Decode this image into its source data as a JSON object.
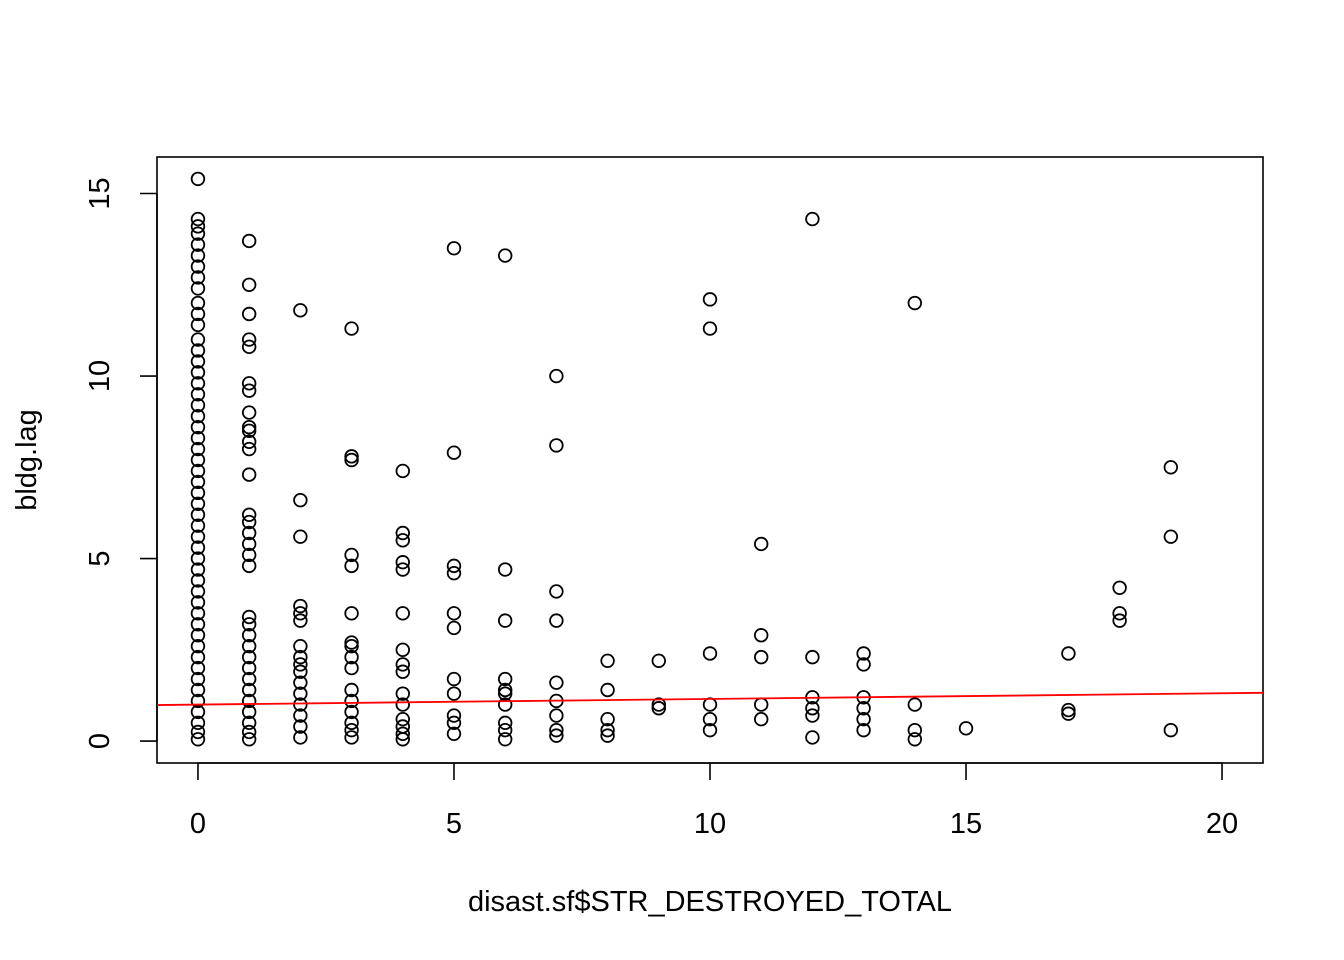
{
  "chart_data": {
    "type": "scatter",
    "title": "",
    "xlabel": "disast.sf$STR_DESTROYED_TOTAL",
    "ylabel": "bldg.lag",
    "xlim": [
      -0.8,
      20.8
    ],
    "ylim": [
      -0.6,
      16.0
    ],
    "xticks": [
      0,
      5,
      10,
      15,
      20
    ],
    "yticks": [
      0,
      5,
      10,
      15
    ],
    "grid": false,
    "legend": "none",
    "colors": {
      "points": "#000000",
      "fit_line": "#ff0000",
      "axes": "#000000"
    },
    "fit_line": {
      "intercept": 1.0,
      "slope": 0.0155,
      "color": "#ff0000"
    },
    "points": [
      {
        "x": 0,
        "y": 15.4
      },
      {
        "x": 0,
        "y": 14.3
      },
      {
        "x": 0,
        "y": 14.1
      },
      {
        "x": 0,
        "y": 13.9
      },
      {
        "x": 0,
        "y": 13.6
      },
      {
        "x": 0,
        "y": 13.3
      },
      {
        "x": 0,
        "y": 13.0
      },
      {
        "x": 0,
        "y": 12.7
      },
      {
        "x": 0,
        "y": 12.4
      },
      {
        "x": 0,
        "y": 12.0
      },
      {
        "x": 0,
        "y": 11.7
      },
      {
        "x": 0,
        "y": 11.4
      },
      {
        "x": 0,
        "y": 11.0
      },
      {
        "x": 0,
        "y": 10.7
      },
      {
        "x": 0,
        "y": 10.4
      },
      {
        "x": 0,
        "y": 10.1
      },
      {
        "x": 0,
        "y": 9.8
      },
      {
        "x": 0,
        "y": 9.5
      },
      {
        "x": 0,
        "y": 9.2
      },
      {
        "x": 0,
        "y": 8.9
      },
      {
        "x": 0,
        "y": 8.6
      },
      {
        "x": 0,
        "y": 8.3
      },
      {
        "x": 0,
        "y": 8.0
      },
      {
        "x": 0,
        "y": 7.7
      },
      {
        "x": 0,
        "y": 7.4
      },
      {
        "x": 0,
        "y": 7.1
      },
      {
        "x": 0,
        "y": 6.8
      },
      {
        "x": 0,
        "y": 6.5
      },
      {
        "x": 0,
        "y": 6.2
      },
      {
        "x": 0,
        "y": 5.9
      },
      {
        "x": 0,
        "y": 5.6
      },
      {
        "x": 0,
        "y": 5.3
      },
      {
        "x": 0,
        "y": 5.0
      },
      {
        "x": 0,
        "y": 4.7
      },
      {
        "x": 0,
        "y": 4.4
      },
      {
        "x": 0,
        "y": 4.1
      },
      {
        "x": 0,
        "y": 3.8
      },
      {
        "x": 0,
        "y": 3.5
      },
      {
        "x": 0,
        "y": 3.2
      },
      {
        "x": 0,
        "y": 2.9
      },
      {
        "x": 0,
        "y": 2.6
      },
      {
        "x": 0,
        "y": 2.3
      },
      {
        "x": 0,
        "y": 2.0
      },
      {
        "x": 0,
        "y": 1.7
      },
      {
        "x": 0,
        "y": 1.4
      },
      {
        "x": 0,
        "y": 1.1
      },
      {
        "x": 0,
        "y": 0.8
      },
      {
        "x": 0,
        "y": 0.5
      },
      {
        "x": 0,
        "y": 0.25
      },
      {
        "x": 0,
        "y": 0.05
      },
      {
        "x": 1,
        "y": 13.7
      },
      {
        "x": 1,
        "y": 12.5
      },
      {
        "x": 1,
        "y": 11.7
      },
      {
        "x": 1,
        "y": 11.0
      },
      {
        "x": 1,
        "y": 10.8
      },
      {
        "x": 1,
        "y": 9.8
      },
      {
        "x": 1,
        "y": 9.6
      },
      {
        "x": 1,
        "y": 9.0
      },
      {
        "x": 1,
        "y": 8.6
      },
      {
        "x": 1,
        "y": 8.5
      },
      {
        "x": 1,
        "y": 8.2
      },
      {
        "x": 1,
        "y": 8.0
      },
      {
        "x": 1,
        "y": 7.3
      },
      {
        "x": 1,
        "y": 6.2
      },
      {
        "x": 1,
        "y": 6.0
      },
      {
        "x": 1,
        "y": 5.7
      },
      {
        "x": 1,
        "y": 5.4
      },
      {
        "x": 1,
        "y": 5.1
      },
      {
        "x": 1,
        "y": 4.8
      },
      {
        "x": 1,
        "y": 3.4
      },
      {
        "x": 1,
        "y": 3.2
      },
      {
        "x": 1,
        "y": 2.9
      },
      {
        "x": 1,
        "y": 2.6
      },
      {
        "x": 1,
        "y": 2.3
      },
      {
        "x": 1,
        "y": 2.0
      },
      {
        "x": 1,
        "y": 1.7
      },
      {
        "x": 1,
        "y": 1.4
      },
      {
        "x": 1,
        "y": 1.1
      },
      {
        "x": 1,
        "y": 0.8
      },
      {
        "x": 1,
        "y": 0.5
      },
      {
        "x": 1,
        "y": 0.25
      },
      {
        "x": 1,
        "y": 0.05
      },
      {
        "x": 2,
        "y": 11.8
      },
      {
        "x": 2,
        "y": 6.6
      },
      {
        "x": 2,
        "y": 5.6
      },
      {
        "x": 2,
        "y": 3.7
      },
      {
        "x": 2,
        "y": 3.5
      },
      {
        "x": 2,
        "y": 3.3
      },
      {
        "x": 2,
        "y": 2.6
      },
      {
        "x": 2,
        "y": 2.3
      },
      {
        "x": 2,
        "y": 2.1
      },
      {
        "x": 2,
        "y": 1.9
      },
      {
        "x": 2,
        "y": 1.6
      },
      {
        "x": 2,
        "y": 1.3
      },
      {
        "x": 2,
        "y": 1.0
      },
      {
        "x": 2,
        "y": 0.7
      },
      {
        "x": 2,
        "y": 0.4
      },
      {
        "x": 2,
        "y": 0.1
      },
      {
        "x": 3,
        "y": 11.3
      },
      {
        "x": 3,
        "y": 7.8
      },
      {
        "x": 3,
        "y": 7.7
      },
      {
        "x": 3,
        "y": 5.1
      },
      {
        "x": 3,
        "y": 4.8
      },
      {
        "x": 3,
        "y": 3.5
      },
      {
        "x": 3,
        "y": 2.7
      },
      {
        "x": 3,
        "y": 2.6
      },
      {
        "x": 3,
        "y": 2.3
      },
      {
        "x": 3,
        "y": 2.0
      },
      {
        "x": 3,
        "y": 1.4
      },
      {
        "x": 3,
        "y": 1.1
      },
      {
        "x": 3,
        "y": 0.8
      },
      {
        "x": 3,
        "y": 0.5
      },
      {
        "x": 3,
        "y": 0.3
      },
      {
        "x": 3,
        "y": 0.1
      },
      {
        "x": 4,
        "y": 7.4
      },
      {
        "x": 4,
        "y": 5.7
      },
      {
        "x": 4,
        "y": 5.5
      },
      {
        "x": 4,
        "y": 4.9
      },
      {
        "x": 4,
        "y": 4.7
      },
      {
        "x": 4,
        "y": 3.5
      },
      {
        "x": 4,
        "y": 2.5
      },
      {
        "x": 4,
        "y": 2.1
      },
      {
        "x": 4,
        "y": 1.9
      },
      {
        "x": 4,
        "y": 1.3
      },
      {
        "x": 4,
        "y": 1.0
      },
      {
        "x": 4,
        "y": 0.6
      },
      {
        "x": 4,
        "y": 0.4
      },
      {
        "x": 4,
        "y": 0.2
      },
      {
        "x": 4,
        "y": 0.05
      },
      {
        "x": 5,
        "y": 13.5
      },
      {
        "x": 5,
        "y": 7.9
      },
      {
        "x": 5,
        "y": 4.8
      },
      {
        "x": 5,
        "y": 4.6
      },
      {
        "x": 5,
        "y": 3.5
      },
      {
        "x": 5,
        "y": 3.1
      },
      {
        "x": 5,
        "y": 1.7
      },
      {
        "x": 5,
        "y": 1.3
      },
      {
        "x": 5,
        "y": 0.7
      },
      {
        "x": 5,
        "y": 0.5
      },
      {
        "x": 5,
        "y": 0.2
      },
      {
        "x": 6,
        "y": 13.3
      },
      {
        "x": 6,
        "y": 4.7
      },
      {
        "x": 6,
        "y": 3.3
      },
      {
        "x": 6,
        "y": 1.7
      },
      {
        "x": 6,
        "y": 1.4
      },
      {
        "x": 6,
        "y": 1.3
      },
      {
        "x": 6,
        "y": 1.0
      },
      {
        "x": 6,
        "y": 0.5
      },
      {
        "x": 6,
        "y": 0.3
      },
      {
        "x": 6,
        "y": 0.05
      },
      {
        "x": 7,
        "y": 10.0
      },
      {
        "x": 7,
        "y": 8.1
      },
      {
        "x": 7,
        "y": 4.1
      },
      {
        "x": 7,
        "y": 3.3
      },
      {
        "x": 7,
        "y": 1.6
      },
      {
        "x": 7,
        "y": 1.1
      },
      {
        "x": 7,
        "y": 0.7
      },
      {
        "x": 7,
        "y": 0.3
      },
      {
        "x": 7,
        "y": 0.15
      },
      {
        "x": 8,
        "y": 2.2
      },
      {
        "x": 8,
        "y": 1.4
      },
      {
        "x": 8,
        "y": 0.6
      },
      {
        "x": 8,
        "y": 0.3
      },
      {
        "x": 8,
        "y": 0.15
      },
      {
        "x": 9,
        "y": 2.2
      },
      {
        "x": 9,
        "y": 1.0
      },
      {
        "x": 9,
        "y": 0.9
      },
      {
        "x": 10,
        "y": 12.1
      },
      {
        "x": 10,
        "y": 11.3
      },
      {
        "x": 10,
        "y": 2.4
      },
      {
        "x": 10,
        "y": 1.0
      },
      {
        "x": 10,
        "y": 0.6
      },
      {
        "x": 10,
        "y": 0.3
      },
      {
        "x": 11,
        "y": 5.4
      },
      {
        "x": 11,
        "y": 2.9
      },
      {
        "x": 11,
        "y": 2.3
      },
      {
        "x": 11,
        "y": 1.0
      },
      {
        "x": 11,
        "y": 0.6
      },
      {
        "x": 12,
        "y": 14.3
      },
      {
        "x": 12,
        "y": 2.3
      },
      {
        "x": 12,
        "y": 1.2
      },
      {
        "x": 12,
        "y": 0.9
      },
      {
        "x": 12,
        "y": 0.7
      },
      {
        "x": 12,
        "y": 0.1
      },
      {
        "x": 13,
        "y": 2.4
      },
      {
        "x": 13,
        "y": 2.1
      },
      {
        "x": 13,
        "y": 1.2
      },
      {
        "x": 13,
        "y": 0.9
      },
      {
        "x": 13,
        "y": 0.6
      },
      {
        "x": 13,
        "y": 0.3
      },
      {
        "x": 14,
        "y": 12.0
      },
      {
        "x": 14,
        "y": 1.0
      },
      {
        "x": 14,
        "y": 0.3
      },
      {
        "x": 14,
        "y": 0.05
      },
      {
        "x": 15,
        "y": 0.35
      },
      {
        "x": 17,
        "y": 2.4
      },
      {
        "x": 17,
        "y": 0.85
      },
      {
        "x": 17,
        "y": 0.75
      },
      {
        "x": 18,
        "y": 4.2
      },
      {
        "x": 18,
        "y": 3.5
      },
      {
        "x": 18,
        "y": 3.3
      },
      {
        "x": 19,
        "y": 7.5
      },
      {
        "x": 19,
        "y": 5.6
      },
      {
        "x": 19,
        "y": 0.3
      }
    ]
  }
}
